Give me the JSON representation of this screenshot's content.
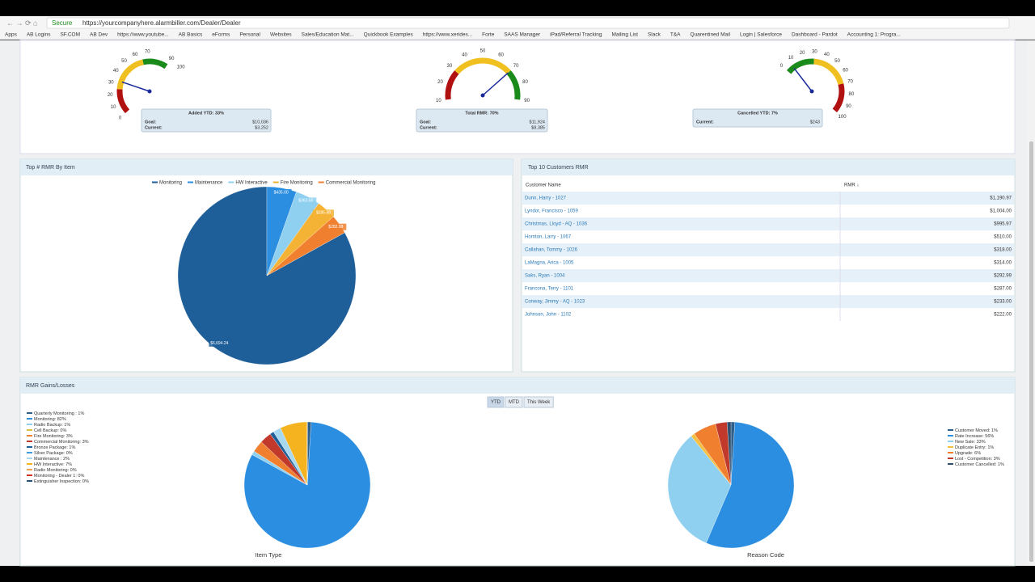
{
  "browser": {
    "secure": "Secure",
    "url": "https://yourcompanyhere.alarmbiller.com/Dealer/Dealer",
    "bookmarks": [
      "Apps",
      "AB Logins",
      "SF.COM",
      "AB Dev",
      "https://www.youtube...",
      "AB Basics",
      "eForms",
      "Personal",
      "Websites",
      "Sales/Education Mat...",
      "Quickbook Examples",
      "https://www.xerides...",
      "Forte",
      "SAAS Manager",
      "iPad/Referral Tracking",
      "Mailing List",
      "Slack",
      "T&A",
      "Quarentined Mail",
      "Login | Salesforce",
      "Dashboard - Pardot",
      "Accounting 1: Progra..."
    ]
  },
  "gauges": [
    {
      "type": "gauge",
      "range": [
        0,
        100
      ],
      "value": 33,
      "ticks": [
        0,
        10,
        20,
        30,
        40,
        50,
        60,
        70,
        90,
        100
      ],
      "bands": [
        {
          "from": 0,
          "to": 25,
          "color": "#b01010"
        },
        {
          "from": 25,
          "to": 65,
          "color": "#f0c020"
        },
        {
          "from": 65,
          "to": 90,
          "color": "#1a8a1a"
        }
      ],
      "title": "Added YTD: 33%",
      "goal_label": "Goal:",
      "goal": "$10,036",
      "current_label": "Current:",
      "current": "$3,252"
    },
    {
      "type": "gauge",
      "range": [
        0,
        100
      ],
      "value": 70,
      "ticks": [
        10,
        20,
        30,
        40,
        50,
        60,
        70,
        80,
        90
      ],
      "bands": [
        {
          "from": 10,
          "to": 30,
          "color": "#b01010"
        },
        {
          "from": 30,
          "to": 70,
          "color": "#f0c020"
        },
        {
          "from": 70,
          "to": 90,
          "color": "#1a8a1a"
        }
      ],
      "title": "Total RMR: 70%",
      "goal_label": "Goal:",
      "goal": "$11,924",
      "current_label": "Current:",
      "current": "$8,385"
    },
    {
      "type": "gauge",
      "range": [
        0,
        100
      ],
      "value": 7,
      "ticks": [
        0,
        10,
        20,
        30,
        40,
        50,
        60,
        70,
        80,
        90,
        100
      ],
      "bands": [
        {
          "from": 0,
          "to": 30,
          "color": "#1a8a1a"
        },
        {
          "from": 30,
          "to": 70,
          "color": "#f0c020"
        },
        {
          "from": 70,
          "to": 100,
          "color": "#b01010"
        }
      ],
      "title": "Cancelled YTD: 7%",
      "current_label": "Current:",
      "current": "$243"
    }
  ],
  "rmr_by_item": {
    "type": "pie",
    "title": "Top # RMR By Item",
    "categories": [
      "Monitoring",
      "Maintenance",
      "HW Interactive",
      "Fire Monitoring",
      "Commercial Monitoring"
    ],
    "values": [
      6694.24,
      435.0,
      363.66,
      285.88,
      282.98
    ],
    "value_labels": [
      "$6,694.24",
      "$435.00",
      "$363.66",
      "$285.88",
      "$282.98"
    ],
    "colors": [
      "#1f5f99",
      "#2b8ee0",
      "#8fd0f0",
      "#f5b335",
      "#f08030"
    ]
  },
  "top_customers": {
    "title": "Top 10 Customers RMR",
    "columns": [
      "Customer Name",
      "RMR ↓"
    ],
    "rows": [
      [
        "Dunn, Harry - 1027",
        "$1,190.97"
      ],
      [
        "Lyndor, Francisco - 1059",
        "$1,004.00"
      ],
      [
        "Christmas, Lloyd - AQ - 1036",
        "$995.97"
      ],
      [
        "Hornton, Larry - 1067",
        "$510.00"
      ],
      [
        "Callahan, Tommy - 1026",
        "$318.00"
      ],
      [
        "LaMagna, Arica - 1005",
        "$314.00"
      ],
      [
        "Saks, Ryan - 1004",
        "$292.99"
      ],
      [
        "Francona, Terry - 1101",
        "$287.00"
      ],
      [
        "Conway, Jimmy - AQ - 1023",
        "$233.00"
      ],
      [
        "Johnson, John - 1102",
        "$222.00"
      ]
    ]
  },
  "gains_losses": {
    "title": "RMR Gains/Losses",
    "buttons": [
      "YTD",
      "MTD",
      "This Week"
    ],
    "chart_data": [
      {
        "type": "pie",
        "title": "Item Type",
        "categories": [
          "Quarterly Monitoring : 1%",
          "Monitoring: 82%",
          "Radio Backup: 1%",
          "Cell Backup: 0%",
          "Fire Monitoring: 3%",
          "Commercial Monitoring: 3%",
          "Bronze Package: 1%",
          "Silver Package: 0%",
          "Maintenance : 2%",
          "HW Interactive: 7%",
          "Radio Monitoring: 0%",
          "Monitoring - Dealer 1: 0%",
          "Extinguisher Inspection: 0%"
        ],
        "values": [
          1,
          82,
          1,
          0,
          3,
          3,
          1,
          0,
          2,
          7,
          0,
          0,
          0
        ],
        "colors": [
          "#2d5f8a",
          "#2b8ee0",
          "#8fd0f0",
          "#d8c040",
          "#f08030",
          "#c0392b",
          "#1f5f99",
          "#3b9ae0",
          "#a8d8f0",
          "#f5b320",
          "#f0a050",
          "#d03020",
          "#2d4f70"
        ]
      },
      {
        "type": "pie",
        "title": "Reason Code",
        "categories": [
          "Customer Moved: 1%",
          "Rate Increase: 56%",
          "New Sale: 33%",
          "Duplicate Entry: 1%",
          "Upgrade: 6%",
          "Lost - Competition: 3%",
          "Customer Cancelled: 1%"
        ],
        "values": [
          1,
          56,
          33,
          1,
          6,
          3,
          1
        ],
        "colors": [
          "#2d5f8a",
          "#2b8ee0",
          "#8fd0f0",
          "#f5c040",
          "#f08030",
          "#c0392b",
          "#2d4f70"
        ]
      }
    ]
  }
}
